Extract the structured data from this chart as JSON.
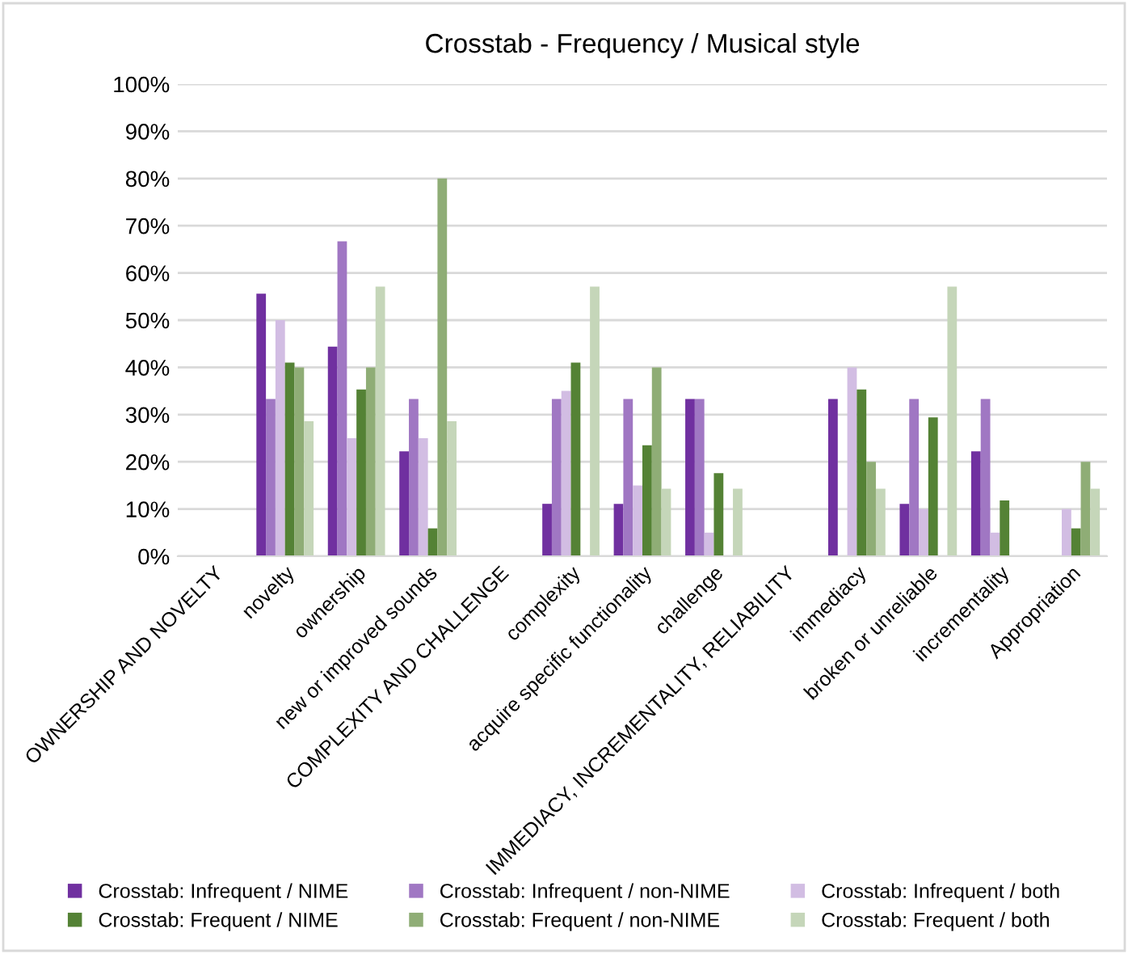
{
  "chart_data": {
    "type": "bar",
    "title": "Crosstab - Frequency / Musical style",
    "categories": [
      "OWNERSHIP AND NOVELTY",
      "novelty",
      "ownership",
      "new or improved sounds",
      "COMPLEXITY AND CHALLENGE",
      "complexity",
      "acquire specific functionality",
      "challenge",
      "IMMEDIACY, INCREMENTALITY, RELIABILITY",
      "immediacy",
      "broken or unreliable",
      "incrementality",
      "Appropriation"
    ],
    "series": [
      {
        "name": "Crosstab: Infrequent / NIME",
        "color": "#7030a0",
        "values": [
          0,
          55.6,
          44.4,
          22.2,
          0,
          11.1,
          11.1,
          33.3,
          0,
          33.3,
          11.1,
          22.2,
          0
        ]
      },
      {
        "name": "Crosstab: Infrequent / non-NIME",
        "color": "#a077c3",
        "values": [
          0,
          33.3,
          66.7,
          33.3,
          0,
          33.3,
          33.3,
          33.3,
          0,
          0,
          33.3,
          33.3,
          0
        ]
      },
      {
        "name": "Crosstab: Infrequent / both",
        "color": "#d2bde3",
        "values": [
          0,
          50,
          25,
          25,
          0,
          35,
          15,
          5,
          0,
          40,
          10,
          5,
          10
        ]
      },
      {
        "name": "Crosstab: Frequent / NIME",
        "color": "#548235",
        "values": [
          0,
          41,
          35.3,
          5.9,
          0,
          41,
          23.5,
          17.6,
          0,
          35.3,
          29.4,
          11.8,
          5.9
        ]
      },
      {
        "name": "Crosstab: Frequent / non-NIME",
        "color": "#8fad76",
        "values": [
          0,
          40,
          40,
          80,
          0,
          0,
          40,
          0,
          0,
          20,
          0,
          0,
          20
        ]
      },
      {
        "name": "Crosstab: Frequent / both",
        "color": "#c5d6b9",
        "values": [
          0,
          28.6,
          57.1,
          28.6,
          0,
          57.1,
          14.3,
          14.3,
          0,
          14.3,
          57.1,
          0,
          14.3
        ]
      }
    ],
    "ylim": [
      0,
      100
    ],
    "yticks": [
      {
        "value": 0,
        "label": "0%"
      },
      {
        "value": 10,
        "label": "10%"
      },
      {
        "value": 20,
        "label": "20%"
      },
      {
        "value": 30,
        "label": "30%"
      },
      {
        "value": 40,
        "label": "40%"
      },
      {
        "value": 50,
        "label": "50%"
      },
      {
        "value": 60,
        "label": "60%"
      },
      {
        "value": 70,
        "label": "70%"
      },
      {
        "value": 80,
        "label": "80%"
      },
      {
        "value": 90,
        "label": "90%"
      },
      {
        "value": 100,
        "label": "100%"
      }
    ],
    "grid": "y",
    "legend": "bottom"
  }
}
